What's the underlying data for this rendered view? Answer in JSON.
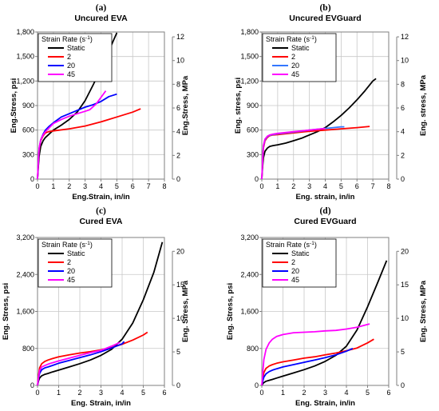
{
  "figure": {
    "legend_title_main": "Strain Rate (s",
    "legend_title_sup": "-1",
    "legend_title_end": ")"
  },
  "chart_data": [
    {
      "type": "line",
      "letter": "(a)",
      "title": "Uncured EVA",
      "xlabel": "Eng.Strain, in/in",
      "ylabel": "Eng.Stress, psi",
      "y2label": "Eng.Stress, MPa",
      "xlim": [
        0,
        8
      ],
      "ylim": [
        0,
        1800
      ],
      "y2lim": [
        0,
        12.41
      ],
      "xticks": [
        "0",
        "1",
        "2",
        "3",
        "4",
        "5",
        "6",
        "7",
        "8"
      ],
      "yticks": [
        "0",
        "300",
        "600",
        "900",
        "1,200",
        "1,500",
        "1,800"
      ],
      "y2ticks": [
        "0",
        "2",
        "4",
        "6",
        "8",
        "10",
        "12"
      ],
      "legend_position": "top-left",
      "series": [
        {
          "name": "Static",
          "color": "#000000",
          "x": [
            0,
            0.05,
            0.1,
            0.2,
            0.35,
            0.5,
            0.7,
            1,
            1.5,
            2,
            2.5,
            3,
            3.5,
            4,
            4.5,
            5
          ],
          "y": [
            0,
            150,
            280,
            400,
            470,
            510,
            545,
            600,
            660,
            730,
            820,
            960,
            1150,
            1350,
            1570,
            1790
          ]
        },
        {
          "name": "2",
          "color": "#ff0000",
          "x": [
            0,
            0.05,
            0.1,
            0.2,
            0.35,
            0.5,
            0.7,
            1,
            2,
            3,
            4,
            5,
            6,
            6.5
          ],
          "y": [
            0,
            200,
            350,
            470,
            530,
            565,
            580,
            590,
            615,
            650,
            700,
            760,
            820,
            860
          ]
        },
        {
          "name": "20",
          "color": "#0000ff",
          "x": [
            0,
            0.05,
            0.1,
            0.2,
            0.35,
            0.5,
            0.7,
            1,
            1.5,
            2,
            2.5,
            3,
            3.5,
            4,
            4.5,
            5
          ],
          "y": [
            0,
            210,
            370,
            480,
            550,
            600,
            640,
            690,
            760,
            800,
            840,
            880,
            910,
            950,
            1010,
            1040
          ]
        },
        {
          "name": "45",
          "color": "#ff00ff",
          "x": [
            0,
            0.05,
            0.1,
            0.2,
            0.35,
            0.5,
            0.7,
            1,
            1.5,
            2,
            2.5,
            3,
            3.3,
            3.7,
            4,
            4.3
          ],
          "y": [
            0,
            220,
            380,
            480,
            540,
            580,
            620,
            680,
            730,
            770,
            800,
            830,
            850,
            920,
            1000,
            1080
          ]
        }
      ]
    },
    {
      "type": "line",
      "letter": "(b)",
      "title": "Uncured EVGuard",
      "xlabel": "Eng. strain, in/in",
      "ylabel": "Eng. stress, psi",
      "y2label": "Eng. stress, MPa",
      "xlim": [
        0,
        8
      ],
      "ylim": [
        0,
        1800
      ],
      "y2lim": [
        0,
        12.41
      ],
      "xticks": [
        "0",
        "1",
        "2",
        "3",
        "4",
        "5",
        "6",
        "7",
        "8"
      ],
      "yticks": [
        "0",
        "300",
        "600",
        "900",
        "1,200",
        "1,500",
        "1,800"
      ],
      "y2ticks": [
        "0",
        "2",
        "4",
        "6",
        "8",
        "10",
        "12"
      ],
      "legend_position": "top-left",
      "series": [
        {
          "name": "Static",
          "color": "#000000",
          "x": [
            0,
            0.05,
            0.1,
            0.2,
            0.35,
            0.5,
            0.7,
            1,
            1.5,
            2,
            2.5,
            3,
            3.5,
            4,
            4.5,
            5,
            5.5,
            6,
            6.5,
            7,
            7.2
          ],
          "y": [
            0,
            150,
            260,
            340,
            380,
            400,
            410,
            420,
            440,
            470,
            500,
            540,
            580,
            630,
            700,
            780,
            870,
            970,
            1080,
            1200,
            1230
          ]
        },
        {
          "name": "2",
          "color": "#ff0000",
          "x": [
            0,
            0.05,
            0.1,
            0.2,
            0.35,
            0.5,
            0.7,
            1,
            2,
            3,
            4,
            5,
            6,
            6.8
          ],
          "y": [
            0,
            200,
            380,
            470,
            510,
            530,
            540,
            545,
            565,
            585,
            600,
            615,
            630,
            645
          ]
        },
        {
          "name": "20",
          "color": "#3377ff",
          "x": [
            0,
            0.05,
            0.1,
            0.2,
            0.35,
            0.5,
            0.7,
            1,
            2,
            3,
            4,
            5,
            5.2
          ],
          "y": [
            0,
            220,
            400,
            480,
            520,
            535,
            545,
            555,
            575,
            600,
            620,
            640,
            640
          ]
        },
        {
          "name": "45",
          "color": "#ff00ff",
          "x": [
            0,
            0.05,
            0.1,
            0.2,
            0.35,
            0.5,
            0.7,
            1,
            2,
            3,
            3.5,
            4
          ],
          "y": [
            0,
            230,
            410,
            490,
            525,
            540,
            550,
            560,
            580,
            600,
            610,
            620
          ]
        }
      ]
    },
    {
      "type": "line",
      "letter": "(c)",
      "title": "Cured EVA",
      "xlabel": "Eng. Strain, in/in",
      "ylabel": "Eng. Stress, psi",
      "y2label": "Eng. Stress, MPa",
      "xlim": [
        0,
        6
      ],
      "ylim": [
        0,
        3200
      ],
      "y2lim": [
        0,
        22.06
      ],
      "xticks": [
        "0",
        "1",
        "2",
        "3",
        "4",
        "5",
        "6"
      ],
      "yticks": [
        "0",
        "800",
        "1,600",
        "2,400",
        "3,200"
      ],
      "y2ticks": [
        "0",
        "5",
        "10",
        "15",
        "20"
      ],
      "legend_position": "top-left",
      "series": [
        {
          "name": "Static",
          "color": "#000000",
          "x": [
            0,
            0.05,
            0.1,
            0.2,
            0.35,
            0.5,
            0.7,
            1,
            1.5,
            2,
            2.5,
            3,
            3.5,
            4,
            4.5,
            5,
            5.5,
            5.9
          ],
          "y": [
            0,
            100,
            160,
            210,
            240,
            260,
            290,
            330,
            400,
            470,
            550,
            650,
            780,
            1000,
            1350,
            1850,
            2450,
            3100
          ]
        },
        {
          "name": "2",
          "color": "#ff0000",
          "x": [
            0,
            0.05,
            0.1,
            0.2,
            0.35,
            0.5,
            0.7,
            1,
            1.5,
            2,
            2.5,
            3,
            3.5,
            4,
            4.5,
            5,
            5.2
          ],
          "y": [
            0,
            220,
            380,
            470,
            520,
            550,
            580,
            620,
            660,
            700,
            730,
            770,
            820,
            890,
            980,
            1090,
            1150
          ]
        },
        {
          "name": "20",
          "color": "#0000ff",
          "x": [
            0,
            0.05,
            0.1,
            0.2,
            0.35,
            0.5,
            0.7,
            1,
            1.5,
            2,
            2.5,
            3,
            3.5,
            4,
            4.1
          ],
          "y": [
            0,
            150,
            260,
            340,
            380,
            400,
            430,
            480,
            540,
            600,
            660,
            730,
            810,
            900,
            950
          ]
        },
        {
          "name": "45",
          "color": "#ff00ff",
          "x": [
            0,
            0.05,
            0.1,
            0.2,
            0.35,
            0.5,
            0.7,
            1,
            1.5,
            2,
            2.5,
            3,
            3.5,
            3.9
          ],
          "y": [
            0,
            180,
            320,
            400,
            430,
            460,
            490,
            530,
            590,
            650,
            710,
            760,
            850,
            930
          ]
        }
      ]
    },
    {
      "type": "line",
      "letter": "(d)",
      "title": "Cured EVGuard",
      "xlabel": "Eng. Strain, in/in",
      "ylabel": "Eng. Stress, psi",
      "y2label": "Eng. Stress, MPa",
      "xlim": [
        0,
        6
      ],
      "ylim": [
        0,
        3200
      ],
      "y2lim": [
        0,
        22.06
      ],
      "xticks": [
        "0",
        "1",
        "2",
        "3",
        "4",
        "5",
        "6"
      ],
      "yticks": [
        "0",
        "800",
        "1,600",
        "2,400",
        "3,200"
      ],
      "y2ticks": [
        "0",
        "5",
        "10",
        "15",
        "20"
      ],
      "legend_position": "top-left",
      "series": [
        {
          "name": "Static",
          "color": "#000000",
          "x": [
            0,
            0.05,
            0.1,
            0.2,
            0.35,
            0.5,
            0.7,
            1,
            1.5,
            2,
            2.5,
            3,
            3.5,
            4,
            4.5,
            5,
            5.5,
            5.9
          ],
          "y": [
            0,
            40,
            60,
            90,
            110,
            130,
            160,
            200,
            270,
            340,
            420,
            520,
            650,
            850,
            1200,
            1700,
            2250,
            2700
          ]
        },
        {
          "name": "2",
          "color": "#ff0000",
          "x": [
            0,
            0.05,
            0.1,
            0.2,
            0.35,
            0.5,
            0.7,
            1,
            1.5,
            2,
            2.5,
            3,
            3.5,
            4,
            4.5,
            5,
            5.3
          ],
          "y": [
            0,
            150,
            280,
            370,
            420,
            450,
            480,
            510,
            550,
            590,
            620,
            660,
            700,
            750,
            810,
            920,
            1000
          ]
        },
        {
          "name": "20",
          "color": "#0000ff",
          "x": [
            0,
            0.05,
            0.1,
            0.2,
            0.35,
            0.5,
            0.7,
            1,
            1.5,
            2,
            2.5,
            3,
            3.5,
            4,
            4.3
          ],
          "y": [
            0,
            100,
            180,
            250,
            300,
            330,
            360,
            400,
            450,
            500,
            550,
            600,
            660,
            740,
            800
          ]
        },
        {
          "name": "45",
          "color": "#ff00ff",
          "x": [
            0,
            0.05,
            0.1,
            0.2,
            0.35,
            0.5,
            0.7,
            1,
            1.5,
            2,
            2.5,
            3,
            3.5,
            4,
            4.5,
            5,
            5.1
          ],
          "y": [
            0,
            300,
            560,
            780,
            920,
            1000,
            1060,
            1100,
            1140,
            1150,
            1160,
            1180,
            1190,
            1220,
            1260,
            1320,
            1330
          ]
        }
      ]
    }
  ]
}
